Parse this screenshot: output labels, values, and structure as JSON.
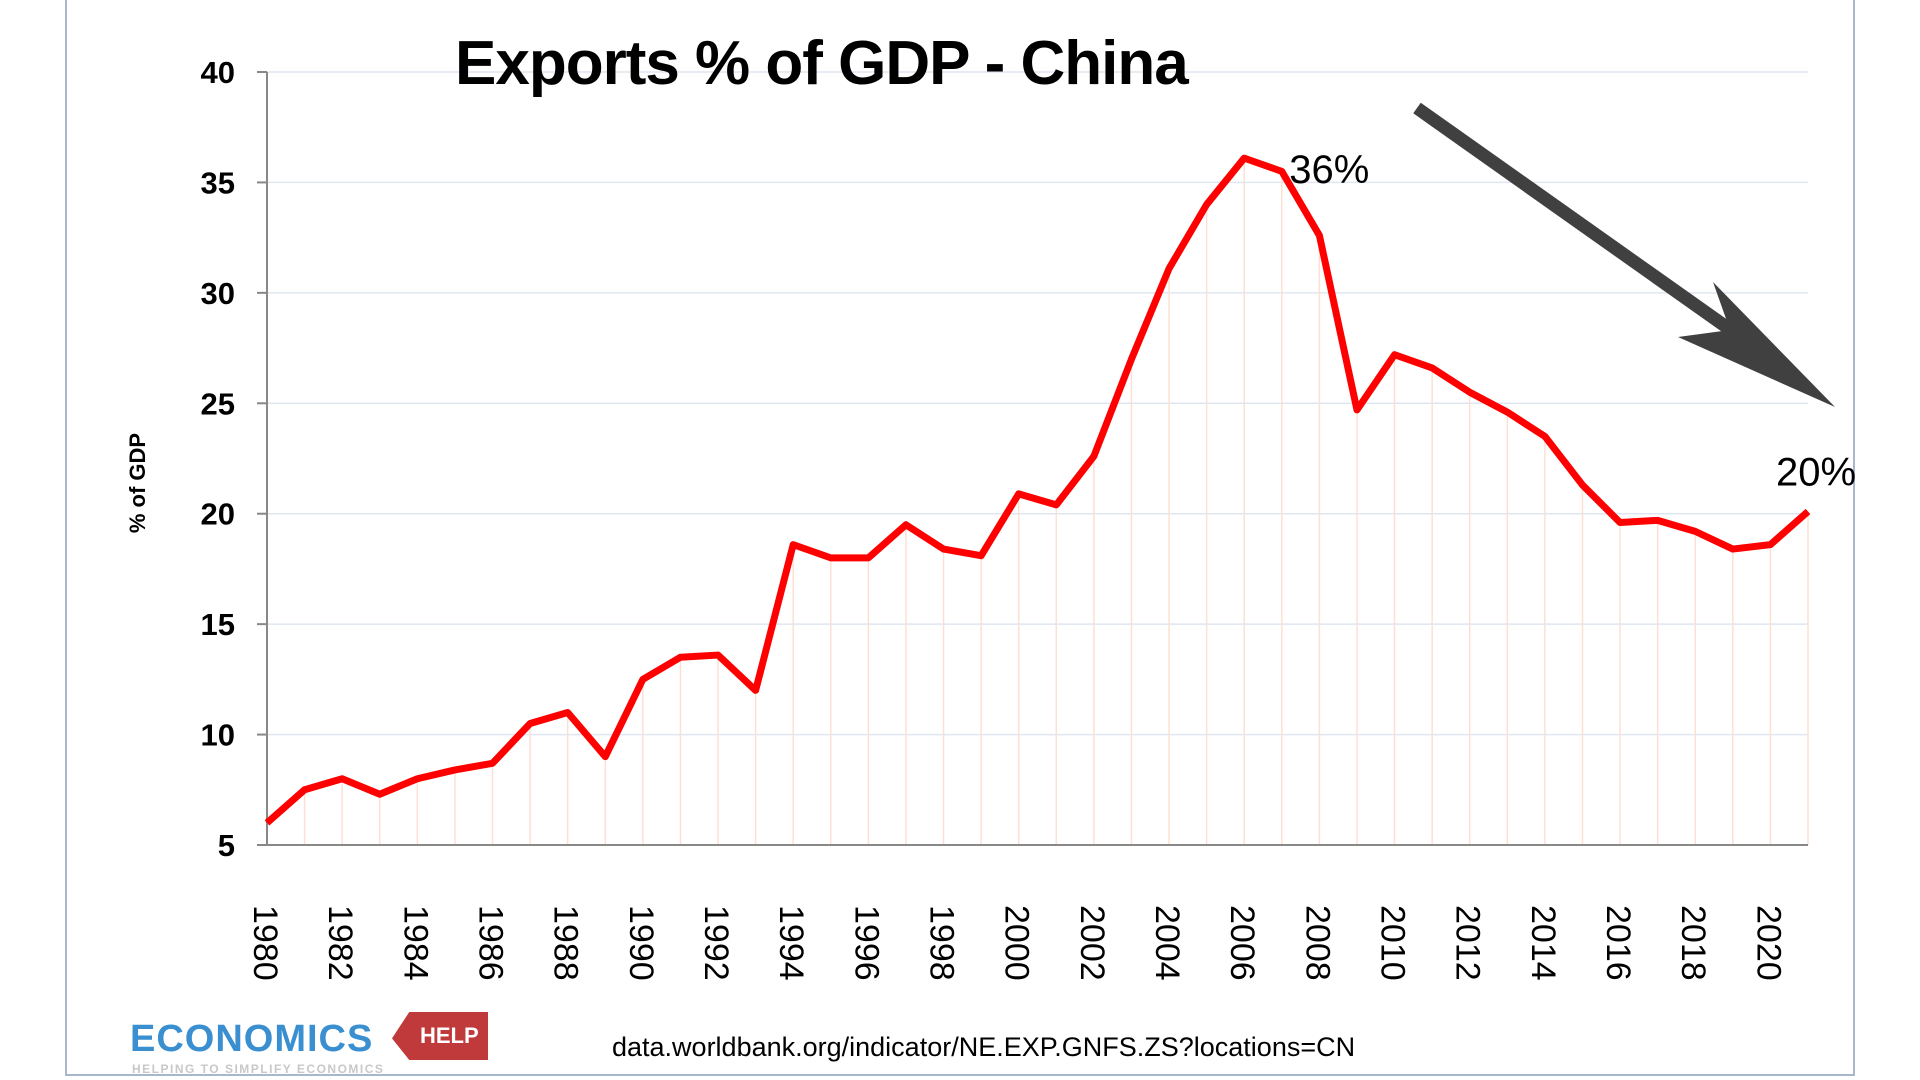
{
  "chart_data": {
    "type": "line",
    "title": "Exports % of GDP - China",
    "ylabel": "% of GDP",
    "xlabel": "",
    "ylim": [
      5,
      40
    ],
    "yticks": [
      5,
      10,
      15,
      20,
      25,
      30,
      35,
      40
    ],
    "grid": true,
    "legend": "none",
    "x": [
      1980,
      1981,
      1982,
      1983,
      1984,
      1985,
      1986,
      1987,
      1988,
      1989,
      1990,
      1991,
      1992,
      1993,
      1994,
      1995,
      1996,
      1997,
      1998,
      1999,
      2000,
      2001,
      2002,
      2003,
      2004,
      2005,
      2006,
      2007,
      2008,
      2009,
      2010,
      2011,
      2012,
      2013,
      2014,
      2015,
      2016,
      2017,
      2018,
      2019,
      2020,
      2021
    ],
    "xtick_labels": [
      "1980",
      "1982",
      "1984",
      "1986",
      "1988",
      "1990",
      "1992",
      "1994",
      "1996",
      "1998",
      "2000",
      "2002",
      "2004",
      "2006",
      "2008",
      "2010",
      "2012",
      "2014",
      "2016",
      "2018",
      "2020"
    ],
    "series": [
      {
        "values": [
          6.0,
          7.5,
          8.0,
          7.3,
          8.0,
          8.4,
          8.7,
          10.5,
          11.0,
          9.0,
          12.5,
          13.5,
          13.6,
          12.0,
          18.6,
          18.0,
          18.0,
          19.5,
          18.4,
          18.1,
          20.9,
          20.4,
          22.6,
          27.0,
          31.1,
          34.0,
          36.1,
          35.5,
          32.6,
          24.7,
          27.2,
          26.6,
          25.5,
          24.6,
          23.5,
          21.3,
          19.6,
          19.7,
          19.2,
          18.4,
          18.6,
          20.1
        ],
        "color": "#ff0000"
      }
    ],
    "annotations": [
      {
        "text": "36%",
        "x": 2006
      },
      {
        "text": "20%",
        "x": 2021
      }
    ],
    "trend_arrow_color": "#404040"
  },
  "source": "data.worldbank.org/indicator/NE.EXP.GNFS.ZS?locations=CN",
  "logo": {
    "text": "ECONOMICS",
    "tag": "HELP",
    "tagline": "HELPING TO SIMPLIFY ECONOMICS",
    "colors": {
      "blue": "#3a8fd0",
      "red": "#c0393b"
    }
  }
}
